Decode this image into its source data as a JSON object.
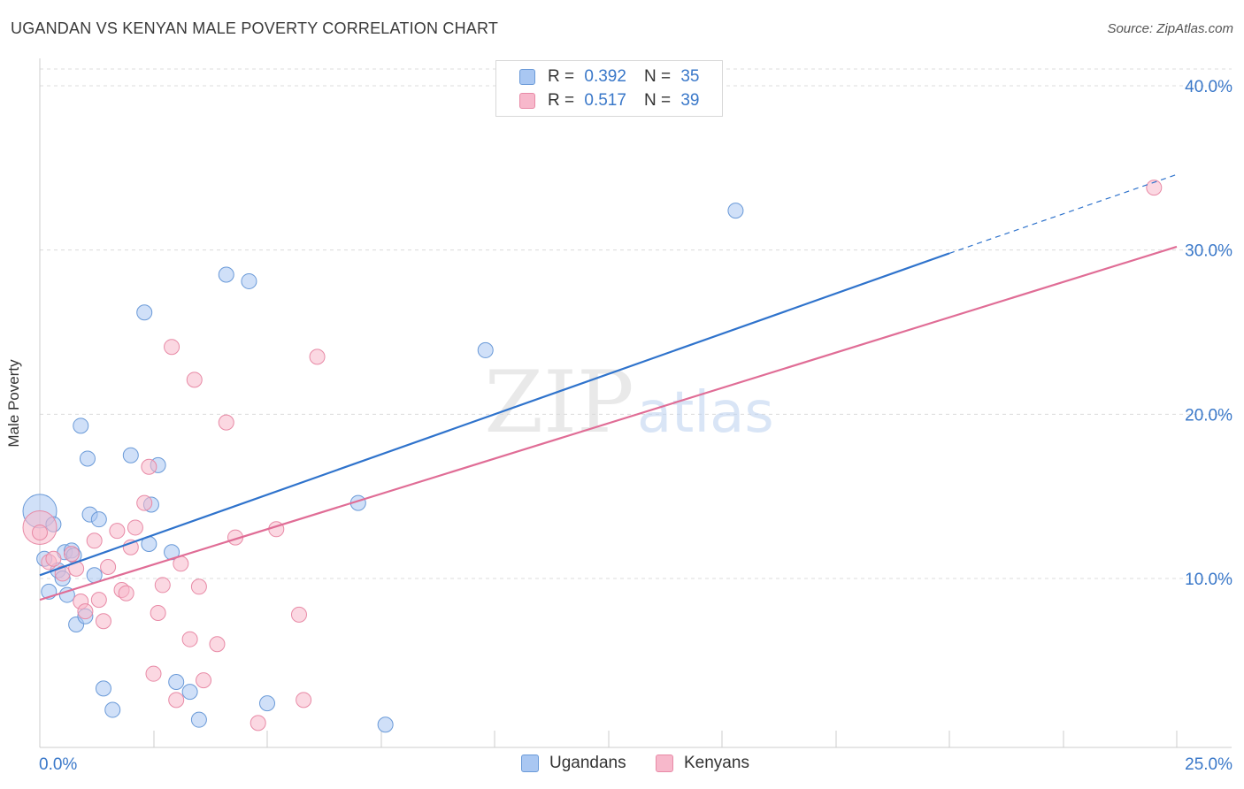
{
  "header": {
    "title": "UGANDAN VS KENYAN MALE POVERTY CORRELATION CHART",
    "source": "Source: ZipAtlas.com"
  },
  "watermark": {
    "zip": "ZIP",
    "atlas": "atlas"
  },
  "legend": {
    "rows": [
      {
        "r_label": "R =",
        "r_value": "0.392",
        "n_label": "N =",
        "n_value": "35"
      },
      {
        "r_label": "R =",
        "r_value": "0.517",
        "n_label": "N =",
        "n_value": "39"
      }
    ]
  },
  "bottom_legend": {
    "ugandans": "Ugandans",
    "kenyans": "Kenyans"
  },
  "colors": {
    "ugandans_fill": "#a9c7f2",
    "ugandans_stroke": "#6a9ad8",
    "ugandans_line": "#2f73cc",
    "kenyans_fill": "#f7b8cb",
    "kenyans_stroke": "#e88aa6",
    "kenyans_line": "#e06d96",
    "tick_label": "#3a78c9",
    "grid": "#dcdcdc"
  },
  "chart_data": {
    "type": "scatter",
    "title": "UGANDAN VS KENYAN MALE POVERTY CORRELATION CHART",
    "xlabel": "",
    "ylabel": "Male Poverty",
    "xlim": [
      0,
      25
    ],
    "ylim": [
      0,
      42
    ],
    "x_tick_labels": [
      "0.0%",
      "25.0%"
    ],
    "y_ticks": [
      10,
      20,
      30,
      40
    ],
    "y_tick_labels": [
      "10.0%",
      "20.0%",
      "30.0%",
      "40.0%"
    ],
    "grid": "horizontal dashed",
    "legend_position": "top-center",
    "series": [
      {
        "name": "Ugandans",
        "R": 0.392,
        "N": 35,
        "points": [
          [
            0.0,
            14.1
          ],
          [
            0.1,
            11.2
          ],
          [
            0.2,
            9.2
          ],
          [
            0.3,
            13.3
          ],
          [
            0.4,
            10.5
          ],
          [
            0.5,
            10.0
          ],
          [
            0.55,
            11.6
          ],
          [
            0.6,
            9.0
          ],
          [
            0.7,
            11.7
          ],
          [
            0.75,
            11.4
          ],
          [
            0.8,
            7.2
          ],
          [
            0.9,
            19.3
          ],
          [
            1.0,
            7.7
          ],
          [
            1.05,
            17.3
          ],
          [
            1.1,
            13.9
          ],
          [
            1.2,
            10.2
          ],
          [
            1.3,
            13.6
          ],
          [
            1.4,
            3.3
          ],
          [
            1.6,
            2.0
          ],
          [
            2.0,
            17.5
          ],
          [
            2.3,
            26.2
          ],
          [
            2.4,
            12.1
          ],
          [
            2.45,
            14.5
          ],
          [
            2.6,
            16.9
          ],
          [
            2.9,
            11.6
          ],
          [
            3.0,
            3.7
          ],
          [
            3.3,
            3.1
          ],
          [
            3.5,
            1.4
          ],
          [
            4.1,
            28.5
          ],
          [
            4.6,
            28.1
          ],
          [
            5.0,
            2.4
          ],
          [
            7.0,
            14.6
          ],
          [
            7.6,
            1.1
          ],
          [
            9.8,
            23.9
          ],
          [
            15.3,
            32.4
          ]
        ]
      },
      {
        "name": "Kenyans",
        "R": 0.517,
        "N": 39,
        "points": [
          [
            0.0,
            13.1
          ],
          [
            0.2,
            11.0
          ],
          [
            0.3,
            11.2
          ],
          [
            0.5,
            10.3
          ],
          [
            0.7,
            11.5
          ],
          [
            0.8,
            10.6
          ],
          [
            0.9,
            8.6
          ],
          [
            1.0,
            8.0
          ],
          [
            1.2,
            12.3
          ],
          [
            1.3,
            8.7
          ],
          [
            1.4,
            7.4
          ],
          [
            1.5,
            10.7
          ],
          [
            1.7,
            12.9
          ],
          [
            1.8,
            9.3
          ],
          [
            1.9,
            9.1
          ],
          [
            2.0,
            11.9
          ],
          [
            2.1,
            13.1
          ],
          [
            2.3,
            14.6
          ],
          [
            2.4,
            16.8
          ],
          [
            2.5,
            4.2
          ],
          [
            2.6,
            7.9
          ],
          [
            2.7,
            9.6
          ],
          [
            2.9,
            24.1
          ],
          [
            3.0,
            2.6
          ],
          [
            3.1,
            10.9
          ],
          [
            3.3,
            6.3
          ],
          [
            3.4,
            22.1
          ],
          [
            3.5,
            9.5
          ],
          [
            3.6,
            3.8
          ],
          [
            3.9,
            6.0
          ],
          [
            4.1,
            19.5
          ],
          [
            4.3,
            12.5
          ],
          [
            4.8,
            1.2
          ],
          [
            5.2,
            13.0
          ],
          [
            5.7,
            7.8
          ],
          [
            5.8,
            2.6
          ],
          [
            6.1,
            23.5
          ],
          [
            24.5,
            33.8
          ],
          [
            0.0,
            12.8
          ]
        ]
      }
    ],
    "trend_lines": [
      {
        "name": "Ugandans",
        "x0": 0.0,
        "y0": 10.2,
        "x1": 20.0,
        "y1": 29.8,
        "dashed_to_x": 25.0,
        "dashed_to_y": 34.6
      },
      {
        "name": "Kenyans",
        "x0": 0.0,
        "y0": 8.7,
        "x1": 25.0,
        "y1": 30.2
      }
    ]
  }
}
